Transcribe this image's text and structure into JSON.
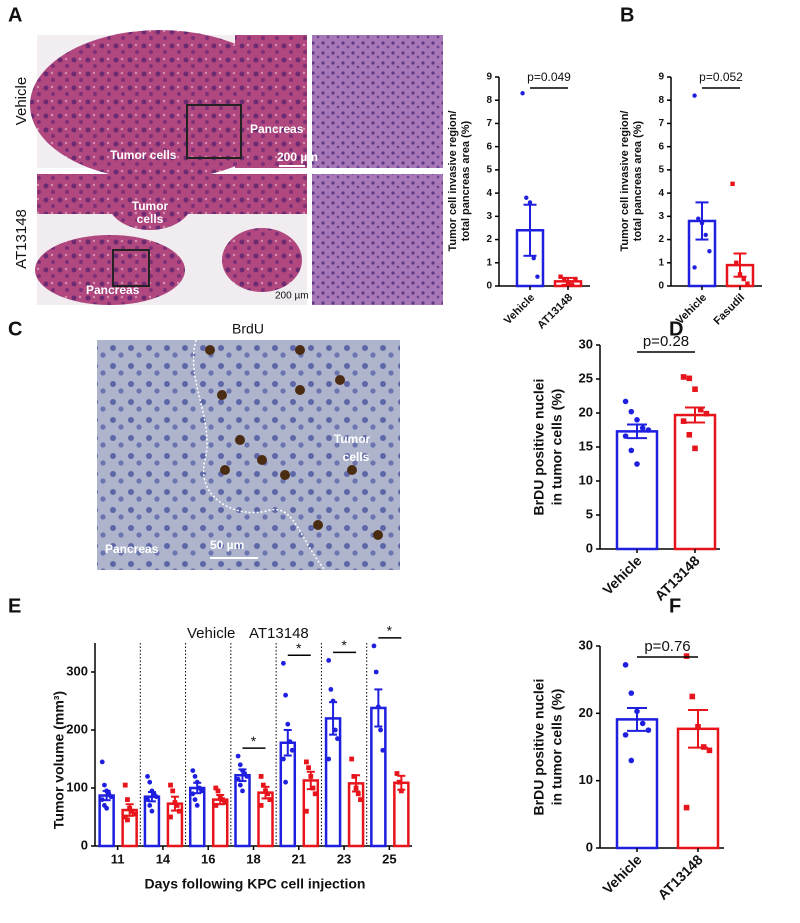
{
  "panel_labels": [
    "A",
    "B",
    "C",
    "D",
    "E",
    "F"
  ],
  "panel_a_images": {
    "row_labels": [
      "Vehicle",
      "AT13148"
    ],
    "vehicle_texts": [
      "Tumor cells",
      "Pancreas",
      "200 µm"
    ],
    "at13148_texts": [
      "Tumor",
      "cells",
      "Pancreas",
      "200 µm"
    ]
  },
  "panel_c_image": {
    "title": "BrdU",
    "texts": [
      "Tumor",
      "cells",
      "Pancreas",
      "50 µm"
    ]
  },
  "chart_data": [
    {
      "type": "bar",
      "y_label": [
        "Tumor cell invasive region/",
        "total pancreas area (%)"
      ],
      "categories": [
        "Vehicle",
        "AT13148"
      ],
      "colors": [
        "#1f1fe0",
        "#e8141c"
      ],
      "values": [
        2.4,
        0.2
      ],
      "errors": [
        1.1,
        0.15
      ],
      "points": [
        [
          8.3,
          3.8,
          3.6,
          1.2,
          0.4
        ],
        [
          0.4,
          0.25,
          0.15,
          0.05,
          0.3
        ]
      ],
      "annotation": "p=0.049",
      "ylim": [
        0,
        9
      ],
      "yticks": [
        0,
        1,
        2,
        3,
        4,
        5,
        6,
        7,
        8,
        9
      ]
    },
    {
      "type": "bar",
      "y_label": [
        "Tumor cell invasive region/",
        "total pancreas area (%)"
      ],
      "categories": [
        "Vehicle",
        "Fasudil"
      ],
      "colors": [
        "#1f1fe0",
        "#e8141c"
      ],
      "values": [
        2.8,
        0.9
      ],
      "errors": [
        0.8,
        0.5
      ],
      "points": [
        [
          8.2,
          2.9,
          2.7,
          2.2,
          1.5,
          0.8
        ],
        [
          4.4,
          1.0,
          0.5,
          0.3,
          0.1
        ]
      ],
      "annotation": "p=0.052",
      "ylim": [
        0,
        9
      ],
      "yticks": [
        0,
        1,
        2,
        3,
        4,
        5,
        6,
        7,
        8,
        9
      ]
    },
    {
      "type": "bar",
      "y_label": [
        "BrDU positive nuclei",
        "in tumor cells (%)"
      ],
      "categories": [
        "Vehicle",
        "AT13148"
      ],
      "colors": [
        "#1f1fe0",
        "#e8141c"
      ],
      "values": [
        17.3,
        19.7
      ],
      "errors": [
        1.0,
        1.1
      ],
      "points": [
        [
          21.7,
          20.2,
          19.0,
          17.8,
          17.5,
          16.6,
          14.5,
          12.5
        ],
        [
          25.3,
          25.1,
          23.5,
          20.5,
          19.9,
          18.8,
          16.8,
          14.8
        ]
      ],
      "annotation": "p=0.28",
      "ylim": [
        0,
        30
      ],
      "yticks": [
        0,
        5,
        10,
        15,
        20,
        25,
        30
      ]
    },
    {
      "type": "grouped_bar",
      "y_label": "Tumor volume (mm³)",
      "x_label": "Days following KPC cell injection",
      "categories": [
        "11",
        "14",
        "16",
        "18",
        "21",
        "23",
        "25"
      ],
      "series": [
        {
          "name": "Vehicle",
          "color": "#1f1fe0",
          "values": [
            87,
            85,
            100,
            122,
            178,
            220,
            238
          ],
          "errors": [
            8,
            8,
            9,
            10,
            22,
            28,
            32
          ],
          "points": [
            [
              145,
              105,
              95,
              90,
              85,
              80,
              70,
              65
            ],
            [
              120,
              110,
              95,
              90,
              85,
              80,
              70,
              60
            ],
            [
              130,
              120,
              110,
              100,
              95,
              90,
              80,
              70
            ],
            [
              155,
              140,
              130,
              125,
              120,
              115,
              105,
              95
            ],
            [
              315,
              260,
              210,
              180,
              165,
              150,
              110
            ],
            [
              320,
              270,
              250,
              200,
              185,
              150
            ],
            [
              345,
              300,
              240,
              200,
              165
            ]
          ]
        },
        {
          "name": "AT13148",
          "color": "#e8141c",
          "values": [
            62,
            73,
            80,
            92,
            113,
            108,
            109
          ],
          "errors": [
            10,
            12,
            8,
            10,
            15,
            14,
            12
          ],
          "points": [
            [
              105,
              80,
              65,
              60,
              55,
              50,
              45
            ],
            [
              105,
              95,
              75,
              70,
              60,
              50
            ],
            [
              100,
              95,
              85,
              80,
              75,
              70
            ],
            [
              120,
              105,
              95,
              90,
              80,
              70
            ],
            [
              145,
              135,
              120,
              100,
              90,
              60
            ],
            [
              150,
              120,
              100,
              90,
              80
            ],
            [
              125,
              110,
              95
            ]
          ]
        }
      ],
      "significance": [
        null,
        null,
        null,
        "*",
        "*",
        "*",
        "*"
      ],
      "ylim": [
        0,
        350
      ],
      "yticks": [
        0,
        100,
        200,
        300
      ]
    },
    {
      "type": "bar",
      "y_label": [
        "BrDU positive nuclei",
        "in tumor cells (%)"
      ],
      "categories": [
        "Vehicle",
        "AT13148"
      ],
      "colors": [
        "#1f1fe0",
        "#e8141c"
      ],
      "values": [
        19.1,
        17.7
      ],
      "errors": [
        1.7,
        2.8
      ],
      "points": [
        [
          27.2,
          23.0,
          20.3,
          18.5,
          17.5,
          16.8,
          13.0
        ],
        [
          28.5,
          22.5,
          18.0,
          15.0,
          14.5,
          6.0
        ]
      ],
      "annotation": "p=0.76",
      "ylim": [
        0,
        30
      ],
      "yticks": [
        0,
        10,
        20,
        30
      ]
    }
  ]
}
